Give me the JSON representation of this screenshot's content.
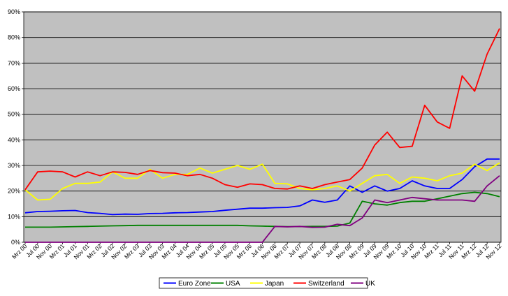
{
  "chart_data": {
    "type": "line",
    "title": "",
    "xlabel": "",
    "ylabel": "",
    "ylim": [
      0,
      90
    ],
    "yticks": [
      0,
      10,
      20,
      30,
      40,
      50,
      60,
      70,
      80,
      90
    ],
    "ytick_labels": [
      "0%",
      "10%",
      "20%",
      "30%",
      "40%",
      "50%",
      "60%",
      "70%",
      "80%",
      "90%"
    ],
    "grid": "horizontal",
    "plot_background": "#c0c0c0",
    "legend_position": "bottom",
    "x": [
      "Mrz 00",
      "Jul 00",
      "Nov 00",
      "Mrz 01",
      "Jul 01",
      "Nov 01",
      "Mrz 02",
      "Jul 02",
      "Nov 02",
      "Mrz 03",
      "Jul 03",
      "Nov 03",
      "Mrz 04",
      "Jul 04",
      "Nov 04",
      "Mrz 05",
      "Jul 05",
      "Nov 05",
      "Mrz 06",
      "Jul 06",
      "Nov 06",
      "Mrz 07",
      "Jul 07",
      "Nov 07",
      "Mrz 08",
      "Jul 08",
      "Nov 08",
      "Mrz 09",
      "Jul 09",
      "Nov 09",
      "Mrz 10",
      "Jul 10",
      "Nov 10",
      "Mrz 11",
      "Jul 11",
      "Nov 11",
      "Mrz 12",
      "Jul 12",
      "Nov 12"
    ],
    "series": [
      {
        "name": "Euro Zone",
        "color": "#0000ff",
        "values": [
          11.5,
          12.0,
          12.1,
          12.3,
          12.4,
          11.6,
          11.3,
          10.8,
          11.0,
          10.9,
          11.2,
          11.3,
          11.5,
          11.6,
          11.8,
          12.0,
          12.5,
          12.9,
          13.3,
          13.3,
          13.5,
          13.6,
          14.2,
          16.5,
          15.6,
          16.5,
          22.0,
          19.5,
          22.0,
          20.0,
          21.0,
          24.0,
          22.0,
          21.0,
          21.0,
          24.5,
          29.5,
          32.5,
          32.5
        ]
      },
      {
        "name": "USA",
        "color": "#008000",
        "values": [
          5.9,
          5.9,
          5.9,
          6.0,
          6.1,
          6.2,
          6.3,
          6.4,
          6.5,
          6.6,
          6.6,
          6.6,
          6.6,
          6.6,
          6.6,
          6.6,
          6.6,
          6.6,
          6.4,
          6.3,
          6.2,
          6.1,
          6.1,
          6.2,
          6.2,
          6.3,
          7.5,
          16.0,
          15.0,
          14.5,
          15.5,
          16.0,
          16.0,
          17.0,
          18.0,
          19.0,
          19.5,
          19.0,
          17.8
        ]
      },
      {
        "name": "Japan",
        "color": "#ffff00",
        "values": [
          20.5,
          16.5,
          16.8,
          21.0,
          23.0,
          23.0,
          23.5,
          27.5,
          25.0,
          25.0,
          28.5,
          25.0,
          26.5,
          26.5,
          29.0,
          27.0,
          28.5,
          30.0,
          28.5,
          30.5,
          23.0,
          22.8,
          21.0,
          20.5,
          21.0,
          22.0,
          20.0,
          23.0,
          26.0,
          26.5,
          23.0,
          25.5,
          25.0,
          24.0,
          26.0,
          27.0,
          30.5,
          28.0,
          31.0
        ]
      },
      {
        "name": "Switzerland",
        "color": "#ff0000",
        "values": [
          20.5,
          27.5,
          27.8,
          27.5,
          25.5,
          27.5,
          26.0,
          27.5,
          27.3,
          26.5,
          28.0,
          27.2,
          27.0,
          26.0,
          26.5,
          25.0,
          22.5,
          21.5,
          22.8,
          22.5,
          21.0,
          20.8,
          22.0,
          21.0,
          22.5,
          23.5,
          24.5,
          29.0,
          38.0,
          43.0,
          37.0,
          37.5,
          53.5,
          47.0,
          44.5,
          65.0,
          59.0,
          73.5,
          83.5
        ]
      },
      {
        "name": "UK",
        "color": "#800080",
        "values": [
          0,
          0,
          0,
          0,
          0,
          0,
          0,
          0,
          0,
          0,
          0,
          0,
          0,
          0,
          0,
          0,
          0,
          0,
          0,
          0,
          6.2,
          6.0,
          6.2,
          5.8,
          5.9,
          7.0,
          6.5,
          9.5,
          16.5,
          15.5,
          16.5,
          17.5,
          17.0,
          16.5,
          16.5,
          16.5,
          16.0,
          22.0,
          26.0
        ]
      }
    ]
  }
}
